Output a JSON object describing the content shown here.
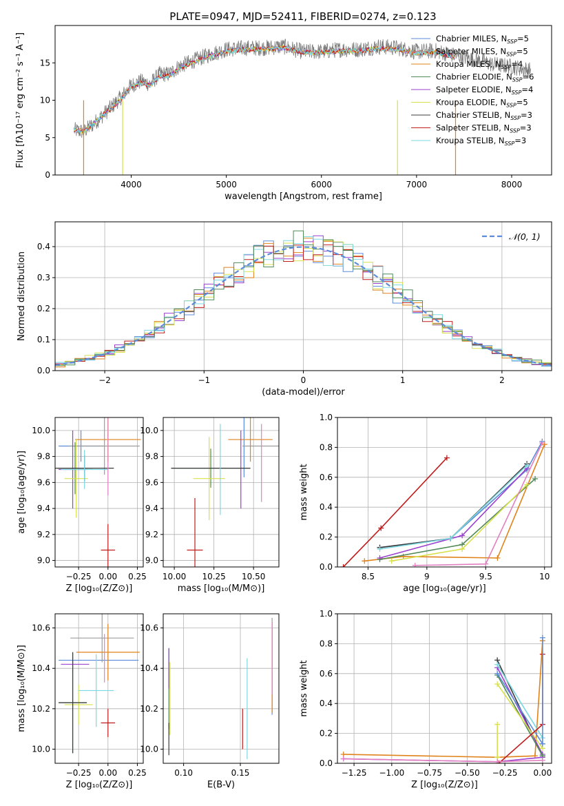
{
  "figure_title": "PLATE=0947, MJD=52411, FIBERID=0274, z=0.123",
  "colors": {
    "Chabrier MILES": "#5b8bd9",
    "Salpeter MILES": "#9b9b9b",
    "Kroupa MILES": "#e0821a",
    "Chabrier ELODIE": "#4f8a57",
    "Salpeter ELODIE": "#9a3fcf",
    "Kroupa ELODIE": "#d7e04a",
    "Chabrier STELIB": "#3a3a3a",
    "Salpeter STELIB": "#c01c1c",
    "Kroupa STELIB": "#7bd8e0",
    "pink": "#e27fc0",
    "normal_curve": "#5b8bd9",
    "grid": "#b0b0b0"
  },
  "chart_data": [
    {
      "id": "spectrum",
      "type": "line",
      "title": "PLATE=0947, MJD=52411, FIBERID=0274, z=0.123",
      "xlabel": "wavelength [Angstrom, rest frame]",
      "ylabel": "Flux [fλ10⁻¹⁷ erg cm⁻² s⁻¹ A⁻¹]",
      "xlim": [
        3200,
        8420
      ],
      "ylim": [
        0,
        20
      ],
      "xticks": [
        4000,
        5000,
        6000,
        7000,
        8000
      ],
      "yticks": [
        0,
        5,
        10,
        15
      ],
      "grid": false,
      "legend_position": "upper right",
      "legend": [
        "Chabrier MILES, N_SSP=5",
        "Salpeter MILES, N_SSP=5",
        "Kroupa MILES, N_SSP=4",
        "Chabrier ELODIE, N_SSP=6",
        "Salpeter ELODIE, N_SSP=4",
        "Kroupa ELODIE, N_SSP=5",
        "Chabrier STELIB, N_SSP=3",
        "Salpeter STELIB, N_SSP=3",
        "Kroupa STELIB, N_SSP=3"
      ],
      "legend_display": [
        {
          "pre": "Chabrier MILES, N",
          "sub": "SSP",
          "post": "=5"
        },
        {
          "pre": "Salpeter MILES, N",
          "sub": "SSP",
          "post": "=5"
        },
        {
          "pre": "Kroupa MILES, N",
          "sub": "SSP",
          "post": "=4"
        },
        {
          "pre": "Chabrier ELODIE, N",
          "sub": "SSP",
          "post": "=6"
        },
        {
          "pre": "Salpeter ELODIE, N",
          "sub": "SSP",
          "post": "=4"
        },
        {
          "pre": "Kroupa ELODIE, N",
          "sub": "SSP",
          "post": "=5"
        },
        {
          "pre": "Chabrier STELIB, N",
          "sub": "SSP",
          "post": "=3"
        },
        {
          "pre": "Salpeter STELIB, N",
          "sub": "SSP",
          "post": "=3"
        },
        {
          "pre": "Kroupa STELIB, N",
          "sub": "SSP",
          "post": "=3"
        }
      ],
      "series": [
        {
          "name": "data",
          "x": [
            3400,
            3500,
            3600,
            3700,
            3800,
            3900,
            4000,
            4100,
            4200,
            4300,
            4400,
            4500,
            4600,
            4700,
            4800,
            5000,
            5200,
            5400,
            5600,
            5800,
            6000,
            6200,
            6400,
            6600,
            6800,
            7000,
            7200,
            7400,
            7600,
            7800,
            8000,
            8200
          ],
          "y": [
            6.0,
            5.8,
            6.8,
            8.0,
            9.2,
            10.5,
            12.0,
            12.5,
            12.2,
            13.5,
            13.5,
            14.5,
            15.0,
            15.5,
            16.0,
            16.8,
            17.0,
            17.0,
            17.2,
            16.5,
            16.5,
            16.8,
            16.8,
            17.2,
            17.0,
            16.5,
            16.6,
            16.0,
            15.5,
            14.8,
            14.5,
            14.0
          ]
        },
        {
          "name": "model",
          "x": [
            3400,
            3500,
            3600,
            3700,
            3800,
            3900,
            4000,
            4100,
            4200,
            4300,
            4400,
            4500,
            4600,
            4700,
            4800,
            5000,
            5200,
            5400,
            5600,
            5800,
            6000,
            6200,
            6400,
            6600,
            6800,
            7000,
            7200,
            7400
          ],
          "y": [
            6.0,
            5.8,
            6.8,
            8.0,
            9.0,
            10.2,
            11.8,
            12.3,
            12.0,
            13.2,
            13.3,
            14.2,
            14.8,
            15.3,
            15.8,
            16.5,
            16.8,
            16.8,
            17.0,
            16.4,
            16.4,
            16.6,
            16.6,
            16.9,
            16.8,
            16.3,
            16.4,
            15.8
          ]
        }
      ]
    },
    {
      "id": "residuals",
      "type": "line",
      "xlabel": "(data-model)/error",
      "ylabel": "Normed distribution",
      "xlim": [
        -2.5,
        2.5
      ],
      "ylim": [
        0,
        0.48
      ],
      "xticks": [
        -2,
        -1,
        0,
        1,
        2
      ],
      "yticks": [
        0.0,
        0.1,
        0.2,
        0.3,
        0.4
      ],
      "xtick_labels": [
        "−2",
        "−1",
        "0",
        "1",
        "2"
      ],
      "grid": true,
      "legend_position": "upper right",
      "legend": [
        "𝒩(0, 1)"
      ],
      "normal": {
        "mean": 0,
        "sigma": 1
      }
    },
    {
      "id": "age_vs_Z",
      "type": "scatter",
      "xlabel": "Z [log₁₀(Z/Z⊙)]",
      "ylabel": "age  [log₁₀(age/yr)]",
      "xlim": [
        -0.45,
        0.3
      ],
      "ylim": [
        8.95,
        10.1
      ],
      "xticks": [
        -0.25,
        0.0,
        0.25
      ],
      "yticks": [
        9.0,
        9.2,
        9.4,
        9.6,
        9.8,
        10.0
      ],
      "xtick_labels": [
        "−0.25",
        "0.00",
        "0.25"
      ],
      "grid": true,
      "points": [
        {
          "x": -0.23,
          "y": 9.88,
          "xerr": 0.19,
          "yerr": 0.12,
          "color": "Chabrier MILES"
        },
        {
          "x": -0.03,
          "y": 9.88,
          "xerr": 0.3,
          "yerr": 0.22,
          "color": "Salpeter MILES"
        },
        {
          "x": 0.0,
          "y": 9.93,
          "xerr": 0.28,
          "yerr": 0.17,
          "color": "Kroupa MILES"
        },
        {
          "x": -0.28,
          "y": 9.71,
          "xerr": 0.15,
          "yerr": 0.2,
          "color": "Chabrier ELODIE"
        },
        {
          "x": -0.3,
          "y": 9.7,
          "xerr": 0.12,
          "yerr": 0.3,
          "color": "Salpeter ELODIE"
        },
        {
          "x": -0.27,
          "y": 9.63,
          "xerr": 0.1,
          "yerr": 0.3,
          "color": "Kroupa ELODIE"
        },
        {
          "x": -0.2,
          "y": 9.71,
          "xerr": 0.25,
          "yerr": 0.1,
          "color": "Chabrier STELIB"
        },
        {
          "x": 0.0,
          "y": 9.08,
          "xerr": 0.06,
          "yerr": 0.2,
          "color": "Salpeter STELIB"
        },
        {
          "x": -0.2,
          "y": 9.7,
          "xerr": 0.2,
          "yerr": 0.15,
          "color": "Kroupa STELIB"
        },
        {
          "x": 0.0,
          "y": 9.8,
          "xerr": 0.0,
          "yerr": 0.3,
          "color": "pink"
        }
      ]
    },
    {
      "id": "age_vs_mass",
      "type": "scatter",
      "xlabel": "mass [log₁₀(M/M⊙)]",
      "xlim": [
        9.93,
        10.66
      ],
      "ylim": [
        8.95,
        10.1
      ],
      "xticks": [
        10.0,
        10.25,
        10.5
      ],
      "yticks": [
        9.0,
        9.2,
        9.4,
        9.6,
        9.8,
        10.0
      ],
      "xtick_labels": [
        "10.00",
        "10.25",
        "10.50"
      ],
      "grid": true,
      "points": [
        {
          "x": 10.44,
          "y": 9.88,
          "xerr": 0.0,
          "yerr": 0.24,
          "color": "Chabrier MILES"
        },
        {
          "x": 10.55,
          "y": 9.88,
          "xerr": 0.12,
          "yerr": 0.0,
          "color": "Salpeter MILES"
        },
        {
          "x": 10.48,
          "y": 9.93,
          "xerr": 0.14,
          "yerr": 0.17,
          "color": "Kroupa MILES"
        },
        {
          "x": 10.23,
          "y": 9.71,
          "xerr": 0.25,
          "yerr": 0.15,
          "color": "Chabrier ELODIE"
        },
        {
          "x": 10.42,
          "y": 9.7,
          "xerr": 0.0,
          "yerr": 0.3,
          "color": "Salpeter ELODIE"
        },
        {
          "x": 10.22,
          "y": 9.63,
          "xerr": 0.1,
          "yerr": 0.32,
          "color": "Kroupa ELODIE"
        },
        {
          "x": 10.23,
          "y": 9.71,
          "xerr": 0.25,
          "yerr": 0.0,
          "color": "Chabrier STELIB"
        },
        {
          "x": 10.13,
          "y": 9.08,
          "xerr": 0.05,
          "yerr": 0.4,
          "color": "Salpeter STELIB"
        },
        {
          "x": 10.29,
          "y": 9.7,
          "xerr": 0.0,
          "yerr": 0.35,
          "color": "Kroupa STELIB"
        },
        {
          "x": 10.55,
          "y": 9.75,
          "xerr": 0.0,
          "yerr": 0.3,
          "color": "pink"
        }
      ]
    },
    {
      "id": "weight_vs_age",
      "type": "line",
      "xlabel": "age  [log₁₀(age/yr)]",
      "ylabel": "mass weight",
      "xlim": [
        8.24,
        10.06
      ],
      "ylim": [
        0,
        1
      ],
      "xticks": [
        8.5,
        9.0,
        9.5,
        10.0
      ],
      "yticks": [
        0.0,
        0.2,
        0.4,
        0.6,
        0.8,
        1.0
      ],
      "grid": true,
      "series": [
        {
          "color": "Salpeter STELIB",
          "x": [
            8.29,
            8.61,
            9.17
          ],
          "y": [
            0.0,
            0.26,
            0.73
          ]
        },
        {
          "color": "Chabrier MILES",
          "x": [
            8.6,
            9.2,
            9.85,
            9.98
          ],
          "y": [
            0.13,
            0.19,
            0.65,
            0.84
          ]
        },
        {
          "color": "Kroupa MILES",
          "x": [
            8.47,
            8.8,
            9.6,
            10.0
          ],
          "y": [
            0.04,
            0.07,
            0.06,
            0.82
          ]
        },
        {
          "color": "Chabrier ELODIE",
          "x": [
            8.6,
            9.3,
            9.92
          ],
          "y": [
            0.05,
            0.15,
            0.59
          ]
        },
        {
          "color": "Salpeter ELODIE",
          "x": [
            8.6,
            9.3,
            9.85
          ],
          "y": [
            0.06,
            0.21,
            0.66
          ]
        },
        {
          "color": "Kroupa ELODIE",
          "x": [
            8.7,
            9.3,
            9.85
          ],
          "y": [
            0.04,
            0.12,
            0.55
          ]
        },
        {
          "color": "Chabrier STELIB",
          "x": [
            8.6,
            9.2,
            9.85
          ],
          "y": [
            0.13,
            0.19,
            0.69
          ]
        },
        {
          "color": "Kroupa STELIB",
          "x": [
            8.6,
            9.2,
            9.85
          ],
          "y": [
            0.12,
            0.19,
            0.68
          ]
        },
        {
          "color": "pink",
          "x": [
            8.9,
            9.5,
            9.98
          ],
          "y": [
            0.01,
            0.02,
            0.83
          ]
        }
      ]
    },
    {
      "id": "mass_vs_Z",
      "type": "scatter",
      "xlabel": "Z [log₁₀(Z/Z⊙)]",
      "ylabel": "mass [log₁₀(M/M⊙)]",
      "xlim": [
        -0.45,
        0.3
      ],
      "ylim": [
        9.93,
        10.67
      ],
      "xticks": [
        -0.25,
        0.0,
        0.25
      ],
      "yticks": [
        10.0,
        10.2,
        10.4,
        10.6
      ],
      "xtick_labels": [
        "−0.25",
        "0.00",
        "0.25"
      ],
      "grid": true,
      "points": [
        {
          "x": -0.08,
          "y": 10.44,
          "xerr": 0.34,
          "yerr": 0.0,
          "color": "Chabrier MILES"
        },
        {
          "x": -0.05,
          "y": 10.55,
          "xerr": 0.27,
          "yerr": 0.12,
          "color": "Salpeter MILES"
        },
        {
          "x": 0.0,
          "y": 10.48,
          "xerr": 0.27,
          "yerr": 0.14,
          "color": "Kroupa MILES"
        },
        {
          "x": -0.3,
          "y": 10.23,
          "xerr": 0.12,
          "yerr": 0.25,
          "color": "Chabrier ELODIE"
        },
        {
          "x": -0.28,
          "y": 10.42,
          "xerr": 0.12,
          "yerr": 0.0,
          "color": "Salpeter ELODIE"
        },
        {
          "x": -0.25,
          "y": 10.22,
          "xerr": 0.12,
          "yerr": 0.1,
          "color": "Kroupa ELODIE"
        },
        {
          "x": -0.3,
          "y": 10.23,
          "xerr": 0.12,
          "yerr": 0.25,
          "color": "Chabrier STELIB"
        },
        {
          "x": 0.0,
          "y": 10.13,
          "xerr": 0.06,
          "yerr": 0.07,
          "color": "Salpeter STELIB"
        },
        {
          "x": -0.1,
          "y": 10.29,
          "xerr": 0.15,
          "yerr": 0.18,
          "color": "Kroupa STELIB"
        },
        {
          "x": -0.03,
          "y": 10.45,
          "xerr": 0.0,
          "yerr": 0.12,
          "color": "pink"
        }
      ]
    },
    {
      "id": "mass_vs_ebv",
      "type": "scatter",
      "xlabel": "E(B-V)",
      "xlim": [
        0.082,
        0.184
      ],
      "ylim": [
        9.93,
        10.67
      ],
      "xticks": [
        0.1,
        0.15
      ],
      "yticks": [
        10.0,
        10.2,
        10.4,
        10.6
      ],
      "xtick_labels": [
        "0.10",
        "0.15"
      ],
      "grid": true,
      "points": [
        {
          "x": 0.178,
          "y": 10.4,
          "xerr": 0.0,
          "yerr": 0.23,
          "color": "Chabrier MILES"
        },
        {
          "x": 0.178,
          "y": 10.55,
          "xerr": 0.0,
          "yerr": 0.1,
          "color": "Salpeter MILES"
        },
        {
          "x": 0.178,
          "y": 10.38,
          "xerr": 0.0,
          "yerr": 0.2,
          "color": "Kroupa MILES"
        },
        {
          "x": 0.087,
          "y": 10.3,
          "xerr": 0.0,
          "yerr": 0.2,
          "color": "Chabrier ELODIE"
        },
        {
          "x": 0.087,
          "y": 10.4,
          "xerr": 0.0,
          "yerr": 0.1,
          "color": "Salpeter ELODIE"
        },
        {
          "x": 0.088,
          "y": 10.25,
          "xerr": 0.0,
          "yerr": 0.18,
          "color": "Kroupa ELODIE"
        },
        {
          "x": 0.087,
          "y": 10.05,
          "xerr": 0.0,
          "yerr": 0.08,
          "color": "Chabrier STELIB"
        },
        {
          "x": 0.152,
          "y": 10.1,
          "xerr": 0.0,
          "yerr": 0.1,
          "color": "Salpeter STELIB"
        },
        {
          "x": 0.156,
          "y": 10.2,
          "xerr": 0.0,
          "yerr": 0.25,
          "color": "Kroupa STELIB"
        },
        {
          "x": 0.178,
          "y": 10.45,
          "xerr": 0.0,
          "yerr": 0.18,
          "color": "pink"
        }
      ]
    },
    {
      "id": "weight_vs_Z",
      "type": "line",
      "xlabel": "Z [log₁₀(Z/Z⊙)]",
      "ylabel": "mass weight",
      "xlim": [
        -1.36,
        0.06
      ],
      "ylim": [
        0,
        1
      ],
      "xticks": [
        -1.25,
        -1.0,
        -0.75,
        -0.5,
        -0.25,
        0.0
      ],
      "yticks": [
        0.0,
        0.2,
        0.4,
        0.6,
        0.8,
        1.0
      ],
      "xtick_labels": [
        "−1.25",
        "−1.00",
        "−0.75",
        "−0.50",
        "−0.25",
        "0.00"
      ],
      "grid": true,
      "series": [
        {
          "color": "Kroupa MILES",
          "x": [
            -1.32,
            -0.3,
            -0.05,
            0.0
          ],
          "y": [
            0.06,
            0.04,
            0.05,
            0.82
          ]
        },
        {
          "color": "Salpeter ELODIE",
          "x": [
            -1.32,
            -0.3,
            0.0
          ],
          "y": [
            0.03,
            0.01,
            0.04
          ]
        },
        {
          "color": "Chabrier STELIB",
          "x": [
            -0.3,
            0.0
          ],
          "y": [
            0.69,
            0.05
          ]
        },
        {
          "color": "Salpeter ELODIE",
          "x": [
            -0.3,
            0.0
          ],
          "y": [
            0.64,
            0.06
          ]
        },
        {
          "color": "Chabrier ELODIE",
          "x": [
            -0.3,
            0.0
          ],
          "y": [
            0.59,
            0.05
          ]
        },
        {
          "color": "Kroupa ELODIE",
          "x": [
            -0.3,
            0.0
          ],
          "y": [
            0.53,
            0.1
          ]
        },
        {
          "color": "Kroupa STELIB",
          "x": [
            -0.3,
            0.0
          ],
          "y": [
            0.66,
            0.17
          ]
        },
        {
          "color": "Chabrier MILES",
          "x": [
            -0.3,
            0.0
          ],
          "y": [
            0.6,
            0.13
          ]
        },
        {
          "color": "Salpeter STELIB",
          "x": [
            -0.29,
            0.0,
            0.0
          ],
          "y": [
            0.0,
            0.26,
            0.73
          ]
        },
        {
          "color": "Chabrier MILES",
          "x": [
            0.0,
            0.0
          ],
          "y": [
            0.13,
            0.84
          ]
        },
        {
          "color": "Kroupa ELODIE",
          "x": [
            -0.3,
            -0.3
          ],
          "y": [
            0.04,
            0.26
          ]
        },
        {
          "color": "pink",
          "x": [
            -1.32,
            -0.3,
            0.0
          ],
          "y": [
            0.03,
            0.01,
            0.02
          ]
        }
      ]
    }
  ]
}
